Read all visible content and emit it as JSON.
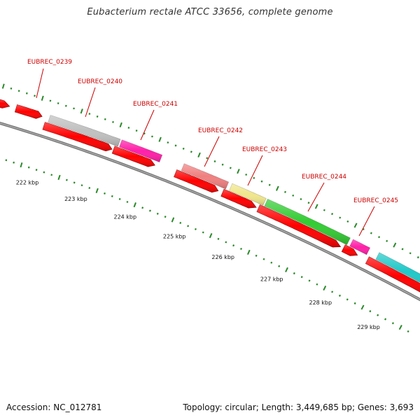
{
  "title": "Eubacterium rectale ATCC 33656, complete genome",
  "footer": {
    "accession": "Accession: NC_012781",
    "summary": "Topology: circular; Length: 3,449,685 bp; Genes: 3,693"
  },
  "colors": {
    "cds_red": "#ff0000",
    "gene_label_red": "#cc0000",
    "tick_green": "#2a8a2a",
    "backbone_gray": "#777777"
  },
  "scale_labels": [
    "222 kbp",
    "223 kbp",
    "224 kbp",
    "225 kbp",
    "226 kbp",
    "227 kbp",
    "228 kbp",
    "229 kbp"
  ],
  "genes": [
    {
      "label": "EUBREC_0239"
    },
    {
      "label": "EUBREC_0240"
    },
    {
      "label": "EUBREC_0241"
    },
    {
      "label": "EUBREC_0242"
    },
    {
      "label": "EUBREC_0243"
    },
    {
      "label": "EUBREC_0244"
    },
    {
      "label": "EUBREC_0245"
    }
  ],
  "feature_colors": [
    "#c0c0c0",
    "#ff1fa8",
    "#f08080",
    "#f0e68c",
    "#33cc33",
    "#ff1fa8",
    "#20c8c8"
  ]
}
